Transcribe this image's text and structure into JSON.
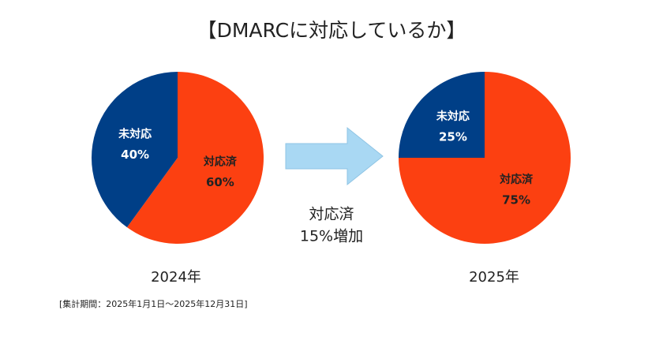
{
  "title": "【DMARCに対応しているか】",
  "annotation": [
    "対応済",
    "15%増加"
  ],
  "footnote": "[集計期間：2025年1月1日～2025年12月31日]",
  "chart_data": [
    {
      "type": "pie",
      "title": "2024年",
      "categories": [
        "対応済",
        "未対応"
      ],
      "values": [
        60,
        40
      ],
      "value_labels": [
        "60%",
        "40%"
      ],
      "colors": [
        "#fc4011",
        "#003f87"
      ]
    },
    {
      "type": "pie",
      "title": "2025年",
      "categories": [
        "対応済",
        "未対応"
      ],
      "values": [
        75,
        25
      ],
      "value_labels": [
        "75%",
        "25%"
      ],
      "colors": [
        "#fc4011",
        "#003f87"
      ]
    }
  ]
}
